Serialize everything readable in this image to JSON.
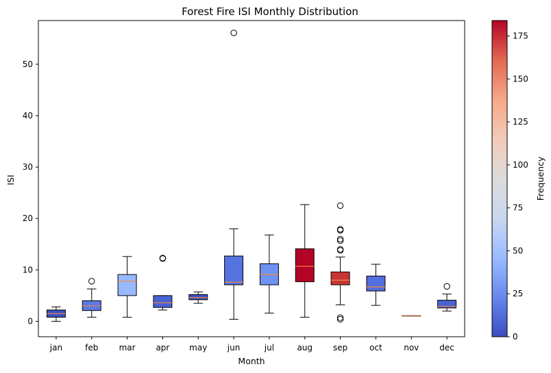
{
  "chart_data": {
    "type": "boxplot",
    "title": "Forest Fire ISI Monthly Distribution",
    "xlabel": "Month",
    "ylabel": "ISI",
    "ylim": [
      -3,
      58.5
    ],
    "yticks": [
      0,
      10,
      20,
      30,
      40,
      50
    ],
    "grid": false,
    "categories": [
      "jan",
      "feb",
      "mar",
      "apr",
      "may",
      "jun",
      "jul",
      "aug",
      "sep",
      "oct",
      "nov",
      "dec"
    ],
    "boxes": [
      {
        "month": "jan",
        "whisker_low": 0.0,
        "q1": 0.8,
        "median": 1.5,
        "q3": 2.2,
        "whisker_high": 2.8,
        "outliers": [],
        "frequency": 2,
        "color": "#3d50c3"
      },
      {
        "month": "feb",
        "whisker_low": 0.8,
        "q1": 2.1,
        "median": 3.0,
        "q3": 4.0,
        "whisker_high": 6.3,
        "outliers": [
          7.8
        ],
        "frequency": 20,
        "color": "#5b7ae5"
      },
      {
        "month": "mar",
        "whisker_low": 0.8,
        "q1": 5.0,
        "median": 7.8,
        "q3": 9.1,
        "whisker_high": 12.6,
        "outliers": [],
        "frequency": 54,
        "color": "#98b9ff"
      },
      {
        "month": "apr",
        "whisker_low": 2.2,
        "q1": 2.7,
        "median": 3.6,
        "q3": 5.0,
        "whisker_high": 5.0,
        "outliers": [
          12.2,
          12.3
        ],
        "frequency": 9,
        "color": "#4a63d3"
      },
      {
        "month": "may",
        "whisker_low": 3.5,
        "q1": 4.2,
        "median": 4.6,
        "q3": 5.2,
        "whisker_high": 5.7,
        "outliers": [],
        "frequency": 2,
        "color": "#3d50c3"
      },
      {
        "month": "jun",
        "whisker_low": 0.4,
        "q1": 7.1,
        "median": 7.6,
        "q3": 12.7,
        "whisker_high": 18.0,
        "outliers": [
          56.1
        ],
        "frequency": 17,
        "color": "#5673e0"
      },
      {
        "month": "jul",
        "whisker_low": 1.6,
        "q1": 7.1,
        "median": 9.1,
        "q3": 11.2,
        "whisker_high": 16.8,
        "outliers": [],
        "frequency": 32,
        "color": "#6f92f3"
      },
      {
        "month": "aug",
        "whisker_low": 0.8,
        "q1": 7.7,
        "median": 10.7,
        "q3": 14.1,
        "whisker_high": 22.7,
        "outliers": [],
        "frequency": 184,
        "color": "#b40426"
      },
      {
        "month": "sep",
        "whisker_low": 3.2,
        "q1": 7.1,
        "median": 8.0,
        "q3": 9.6,
        "whisker_high": 12.5,
        "outliers": [
          0.4,
          0.7,
          13.8,
          14.0,
          15.7,
          16.0,
          17.7,
          17.9,
          22.5
        ],
        "frequency": 172,
        "color": "#c73635"
      },
      {
        "month": "oct",
        "whisker_low": 3.1,
        "q1": 5.9,
        "median": 6.7,
        "q3": 8.8,
        "whisker_high": 11.1,
        "outliers": [],
        "frequency": 15,
        "color": "#536edd"
      },
      {
        "month": "nov",
        "whisker_low": 1.1,
        "q1": 1.1,
        "median": 1.1,
        "q3": 1.1,
        "whisker_high": 1.1,
        "outliers": [],
        "frequency": 1,
        "color": "#3b4cc0"
      },
      {
        "month": "dec",
        "whisker_low": 2.0,
        "q1": 2.6,
        "median": 2.9,
        "q3": 4.1,
        "whisker_high": 5.3,
        "outliers": [
          6.8
        ],
        "frequency": 9,
        "color": "#4a63d3"
      }
    ],
    "colorbar": {
      "label": "Frequency",
      "min": 0,
      "max": 184,
      "ticks": [
        0,
        25,
        50,
        75,
        100,
        125,
        150,
        175
      ],
      "colormap": "coolwarm",
      "stops": [
        "#3b4cc0",
        "#6788ee",
        "#9abbff",
        "#c9d7f0",
        "#dddcdc",
        "#f2cbb7",
        "#f7a889",
        "#e26952",
        "#b40426"
      ]
    }
  }
}
